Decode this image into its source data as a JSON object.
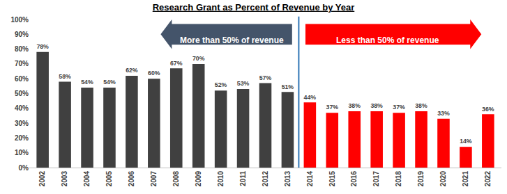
{
  "chart_data": {
    "type": "bar",
    "title": "Research Grant as Percent of Revenue by Year",
    "categories": [
      "2002",
      "2003",
      "2004",
      "2005",
      "2006",
      "2007",
      "2008",
      "2009",
      "2010",
      "2011",
      "2012",
      "2013",
      "2014",
      "2015",
      "2016",
      "2017",
      "2018",
      "2019",
      "2020",
      "2021",
      "2022"
    ],
    "values": [
      78,
      58,
      54,
      54,
      62,
      60,
      67,
      70,
      52,
      53,
      57,
      51,
      44,
      37,
      38,
      38,
      37,
      38,
      33,
      14,
      36
    ],
    "value_labels": [
      "78%",
      "58%",
      "54%",
      "54%",
      "62%",
      "60%",
      "67%",
      "70%",
      "52%",
      "53%",
      "57%",
      "51%",
      "44%",
      "37%",
      "38%",
      "38%",
      "37%",
      "38%",
      "33%",
      "14%",
      "36%"
    ],
    "colors": [
      "#404040",
      "#404040",
      "#404040",
      "#404040",
      "#404040",
      "#404040",
      "#404040",
      "#404040",
      "#404040",
      "#404040",
      "#404040",
      "#404040",
      "#ff0000",
      "#ff0000",
      "#ff0000",
      "#ff0000",
      "#ff0000",
      "#ff0000",
      "#ff0000",
      "#ff0000",
      "#ff0000"
    ],
    "data_labels": true,
    "annotations": [
      "More than 50% of revenue",
      "Less than 50% of revenue"
    ],
    "ylim": [
      0,
      100
    ],
    "yticks": [
      {
        "value": 0,
        "label": "0%"
      },
      {
        "value": 10,
        "label": "10%"
      },
      {
        "value": 20,
        "label": "20%"
      },
      {
        "value": 30,
        "label": "30%"
      },
      {
        "value": 40,
        "label": "40%"
      },
      {
        "value": 50,
        "label": "50%"
      },
      {
        "value": 60,
        "label": "60%"
      },
      {
        "value": 70,
        "label": "70%"
      },
      {
        "value": 80,
        "label": "80%"
      },
      {
        "value": 90,
        "label": "90%"
      },
      {
        "value": 100,
        "label": "100%"
      }
    ],
    "grid": false
  }
}
